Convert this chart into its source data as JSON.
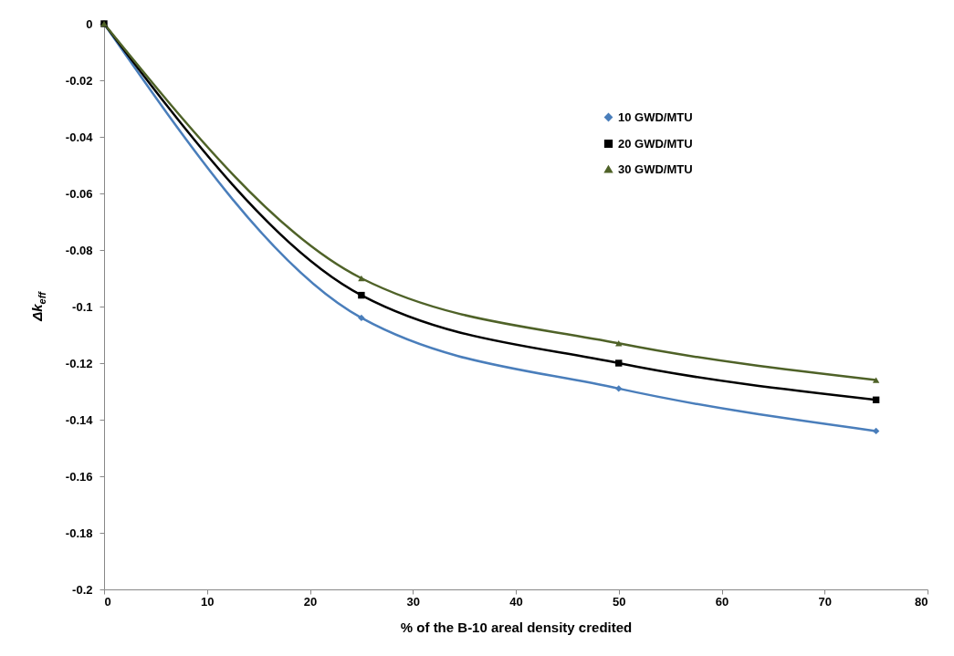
{
  "chart_data": {
    "type": "line",
    "xlabel": "% of the B-10 areal density credited",
    "ylabel": "Δk$_{eff}$",
    "x": [
      0,
      25,
      50,
      75
    ],
    "series": [
      {
        "name": "10 GWD/MTU",
        "color": "#4a7ebb",
        "marker": "diamond",
        "values": [
          0,
          -0.104,
          -0.129,
          -0.144
        ]
      },
      {
        "name": "20 GWD/MTU",
        "color": "#000000",
        "marker": "square",
        "values": [
          0,
          -0.096,
          -0.12,
          -0.133
        ]
      },
      {
        "name": "30 GWD/MTU",
        "color": "#4f6228",
        "marker": "triangle",
        "values": [
          0,
          -0.09,
          -0.113,
          -0.126
        ]
      }
    ],
    "xlim": [
      0,
      80
    ],
    "xticks": [
      0,
      10,
      20,
      30,
      40,
      50,
      60,
      70,
      80
    ],
    "ylim": [
      -0.2,
      0
    ],
    "yticks": [
      0,
      -0.02,
      -0.04,
      -0.06,
      -0.08,
      -0.1,
      -0.12,
      -0.14,
      -0.16,
      -0.18,
      -0.2
    ],
    "grid": false,
    "legend": "top right",
    "line_style": "solid"
  }
}
